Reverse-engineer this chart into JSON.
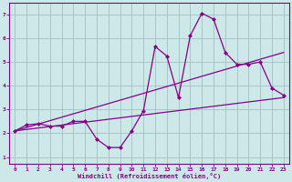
{
  "xlabel": "Windchill (Refroidissement éolien,°C)",
  "xlim": [
    -0.5,
    23.5
  ],
  "ylim": [
    0.7,
    7.5
  ],
  "yticks": [
    1,
    2,
    3,
    4,
    5,
    6,
    7
  ],
  "xticks": [
    0,
    1,
    2,
    3,
    4,
    5,
    6,
    7,
    8,
    9,
    10,
    11,
    12,
    13,
    14,
    15,
    16,
    17,
    18,
    19,
    20,
    21,
    22,
    23
  ],
  "bg_color": "#cce8e8",
  "line_color": "#880088",
  "grid_color": "#99bbbb",
  "series": {
    "jagged": [
      [
        0,
        2.1
      ],
      [
        1,
        2.35
      ],
      [
        2,
        2.4
      ],
      [
        3,
        2.3
      ],
      [
        4,
        2.3
      ],
      [
        5,
        2.5
      ],
      [
        6,
        2.5
      ],
      [
        7,
        1.75
      ],
      [
        8,
        1.4
      ],
      [
        9,
        1.4
      ],
      [
        10,
        2.1
      ],
      [
        11,
        2.95
      ],
      [
        12,
        5.65
      ],
      [
        13,
        5.25
      ],
      [
        14,
        3.5
      ],
      [
        15,
        6.1
      ],
      [
        16,
        7.05
      ],
      [
        17,
        6.8
      ],
      [
        18,
        5.4
      ],
      [
        19,
        4.9
      ],
      [
        20,
        4.9
      ],
      [
        21,
        5.0
      ],
      [
        22,
        3.9
      ],
      [
        23,
        3.6
      ]
    ],
    "upper_line": [
      [
        0,
        2.1
      ],
      [
        23,
        5.4
      ]
    ],
    "lower_line": [
      [
        0,
        2.1
      ],
      [
        23,
        3.5
      ]
    ]
  }
}
